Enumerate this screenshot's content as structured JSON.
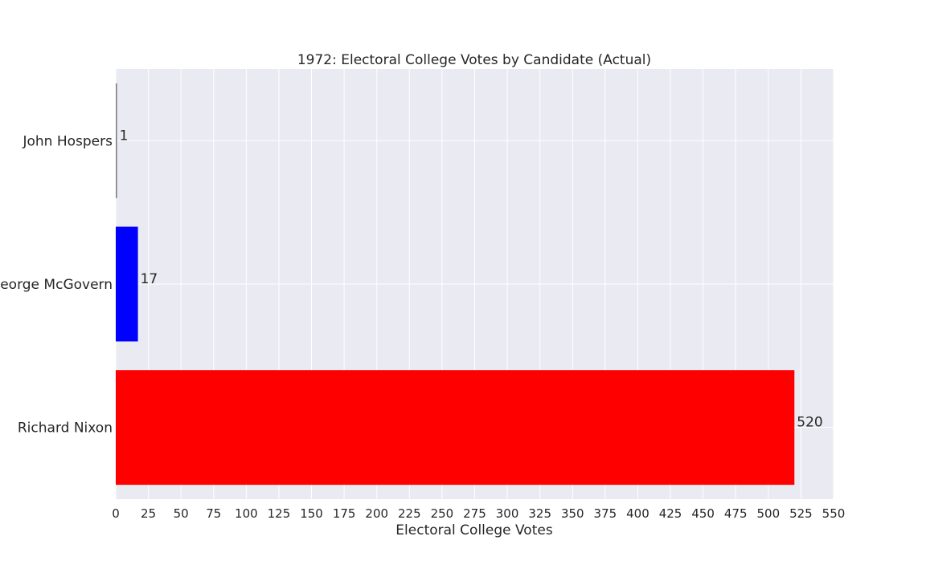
{
  "chart_data": {
    "type": "bar",
    "orientation": "horizontal",
    "title": "1972: Electoral College Votes by Candidate (Actual)",
    "xlabel": "Electoral College Votes",
    "ylabel": "",
    "categories": [
      "Richard Nixon",
      "George McGovern",
      "John Hospers"
    ],
    "values": [
      520,
      17,
      1
    ],
    "colors": [
      "#ff0000",
      "#0000ff",
      "#808080"
    ],
    "data_labels": [
      "520",
      "17",
      "1"
    ],
    "xlim": [
      0,
      550
    ],
    "xticks": [
      0,
      25,
      50,
      75,
      100,
      125,
      150,
      175,
      200,
      225,
      250,
      275,
      300,
      325,
      350,
      375,
      400,
      425,
      450,
      475,
      500,
      525,
      550
    ],
    "grid": true,
    "legend": "none",
    "plot_background": "#eaeaf2",
    "grid_color": "#ffffff"
  }
}
